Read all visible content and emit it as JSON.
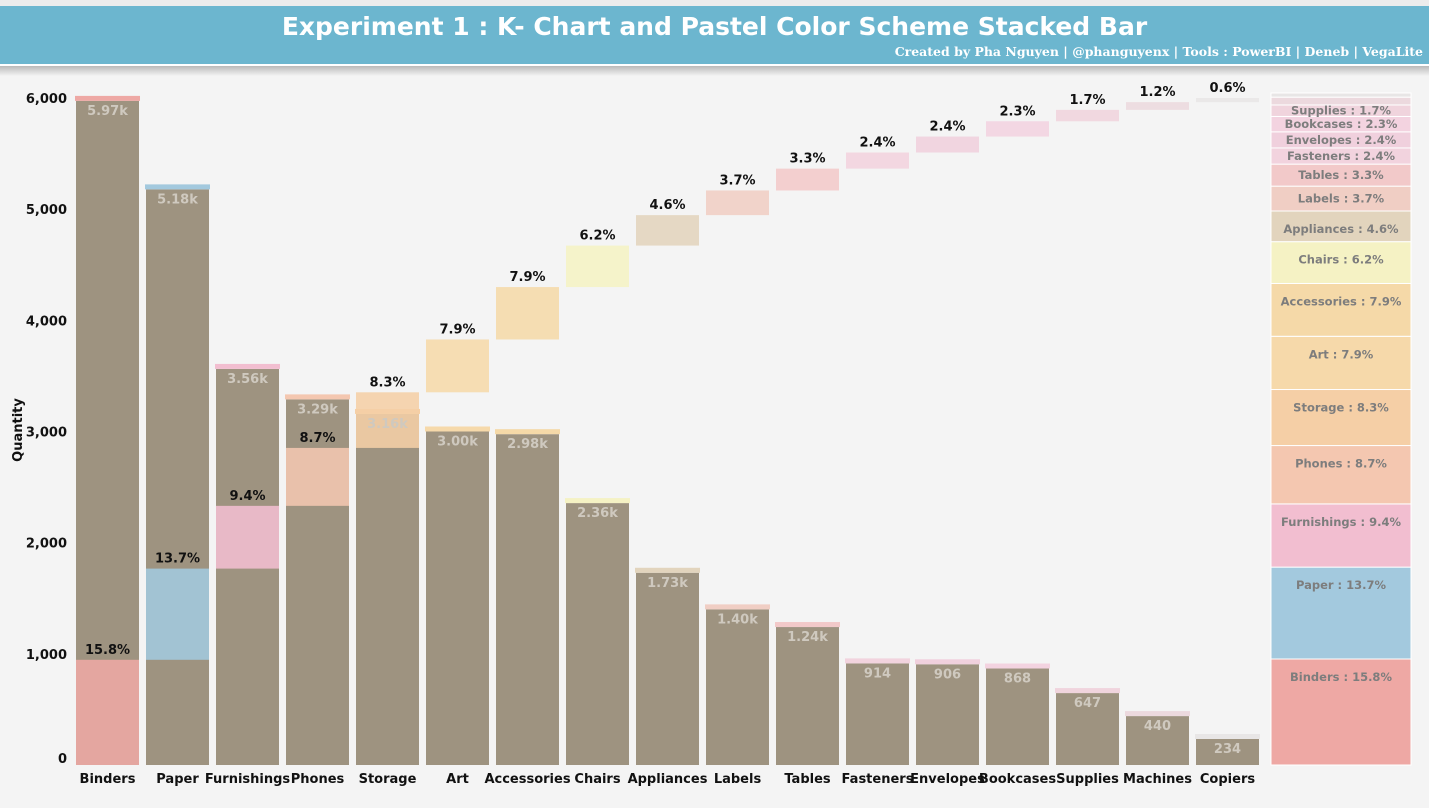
{
  "header": {
    "title": "Experiment 1 :  K- Chart and Pastel Color Scheme Stacked Bar",
    "subtitle": "Created by Pha Nguyen  | @phanguyenx | Tools : PowerBI | Deneb | VegaLite"
  },
  "chart_data": {
    "type": "bar",
    "ylabel": "Quantity",
    "ylim": [
      0,
      6000
    ],
    "yticks": [
      "0",
      "1,000",
      "2,000",
      "3,000",
      "4,000",
      "5,000",
      "6,000"
    ],
    "categories": [
      "Binders",
      "Paper",
      "Furnishings",
      "Phones",
      "Storage",
      "Art",
      "Accessories",
      "Chairs",
      "Appliances",
      "Labels",
      "Tables",
      "Fasteners",
      "Envelopes",
      "Bookcases",
      "Supplies",
      "Machines",
      "Copiers"
    ],
    "values": [
      5974,
      5178,
      3563,
      3289,
      3158,
      3000,
      2976,
      2356,
      1729,
      1400,
      1241,
      914,
      906,
      868,
      647,
      440,
      234
    ],
    "value_labels": [
      "5.97k",
      "5.18k",
      "3.56k",
      "3.29k",
      "3.16k",
      "3.00k",
      "2.98k",
      "2.36k",
      "1.73k",
      "1.40k",
      "1.24k",
      "914",
      "906",
      "868",
      "647",
      "440",
      "234"
    ],
    "shares": [
      15.8,
      13.7,
      9.4,
      8.7,
      8.3,
      7.9,
      7.9,
      6.2,
      4.6,
      3.7,
      3.3,
      2.4,
      2.4,
      2.3,
      1.7,
      1.2,
      0.6
    ],
    "share_labels": [
      "15.8%",
      "13.7%",
      "9.4%",
      "8.7%",
      "8.3%",
      "7.9%",
      "7.9%",
      "6.2%",
      "4.6%",
      "3.7%",
      "3.3%",
      "2.4%",
      "2.4%",
      "2.3%",
      "1.7%",
      "1.2%",
      "0.6%"
    ],
    "legend_labels": [
      "Binders : 15.8%",
      "Paper : 13.7%",
      "Furnishings : 9.4%",
      "Phones : 8.7%",
      "Storage : 8.3%",
      "Art : 7.9%",
      "Accessories : 7.9%",
      "Chairs : 6.2%",
      "Appliances : 4.6%",
      "Labels : 3.7%",
      "Tables : 3.3%",
      "Fasteners : 2.4%",
      "Envelopes : 2.4%",
      "Bookcases : 2.3%",
      "Supplies : 1.7%",
      "",
      ""
    ],
    "colors": [
      "#eea8a4",
      "#a3c9de",
      "#f2bed0",
      "#f4c7b0",
      "#f5cfa6",
      "#f6d9aa",
      "#f5d9a8",
      "#f5f2c4",
      "#e2d4bd",
      "#f0cec4",
      "#f2c9c9",
      "#f2d3de",
      "#f0d0dd",
      "#f3d3e0",
      "#f0d4dd",
      "#ecd9de",
      "#e8e6e6"
    ],
    "bar_color": "#9e9380",
    "label_color": "#cfc9bf",
    "legend_position": "right",
    "grid": false
  }
}
